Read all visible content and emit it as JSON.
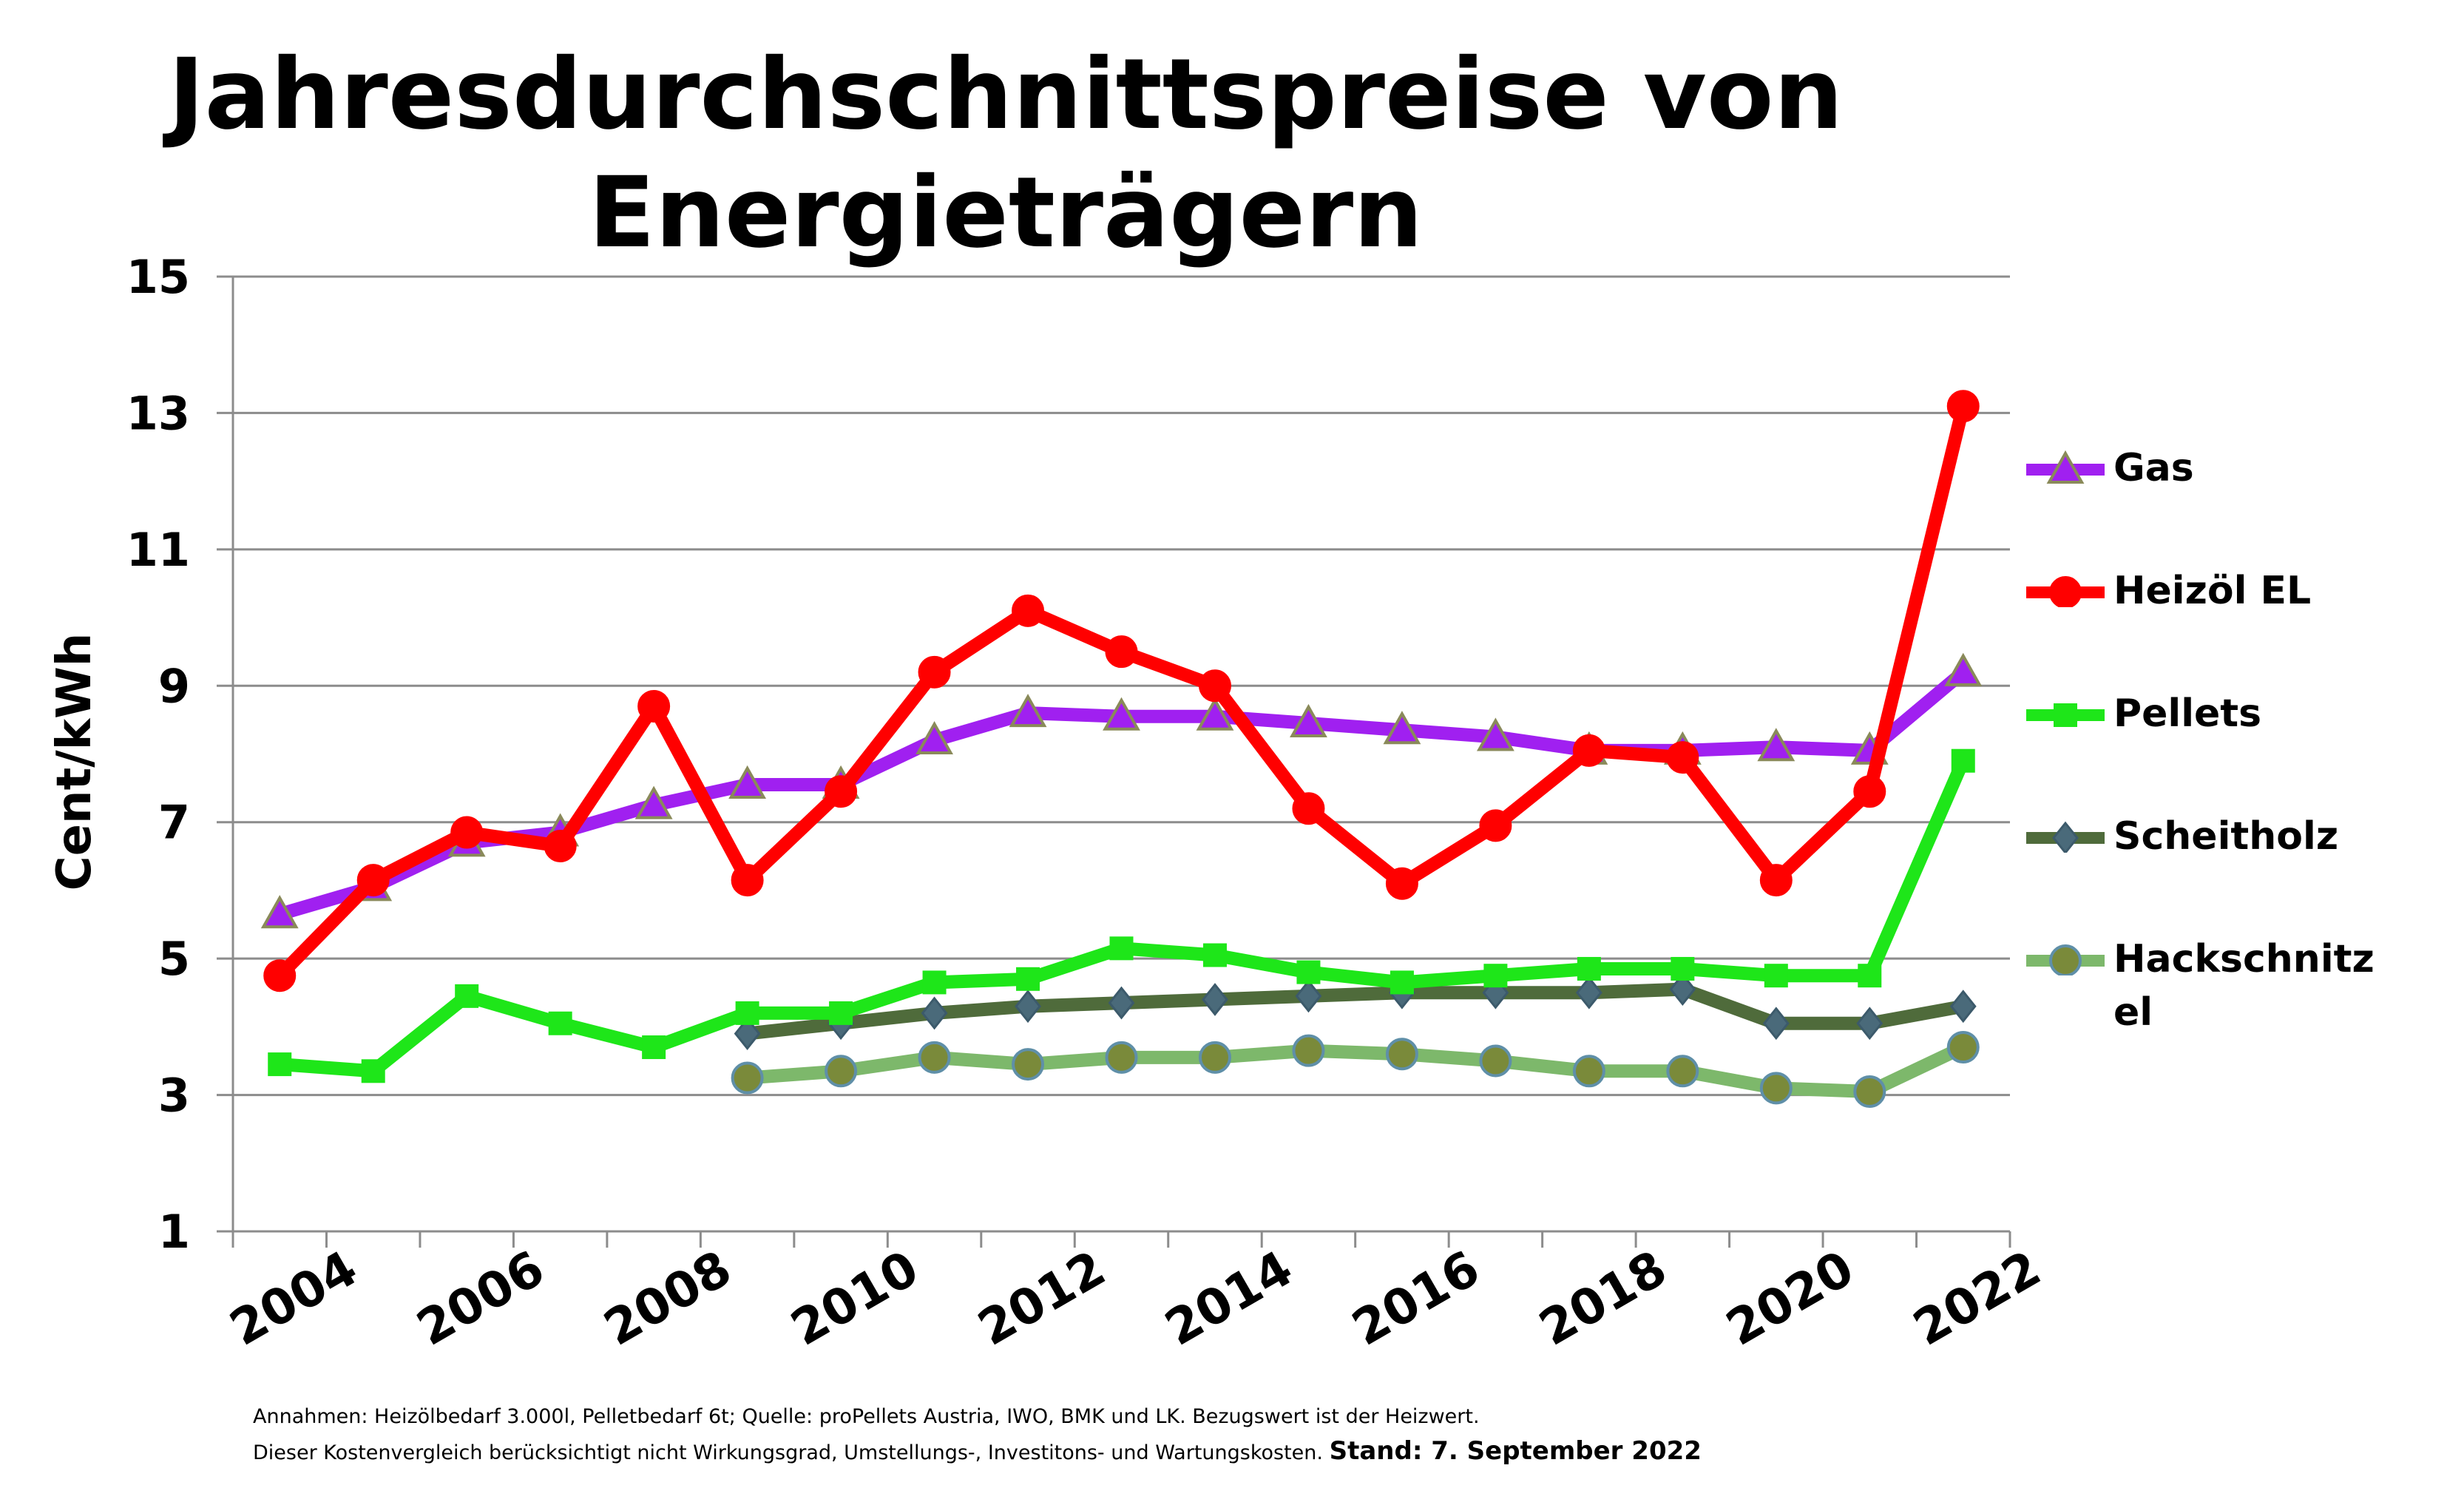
{
  "chart_data": {
    "type": "line",
    "title_lines": [
      "Jahresdurchschnittspreise von",
      "Energieträgern"
    ],
    "ylabel": "Cent/kWh",
    "xlabel": "",
    "ylim": [
      1,
      15
    ],
    "yticks": [
      1,
      3,
      5,
      7,
      9,
      11,
      13,
      15
    ],
    "xtick_labels": [
      "2004",
      "2006",
      "2008",
      "2010",
      "2012",
      "2014",
      "2016",
      "2018",
      "2020",
      "2022"
    ],
    "x": [
      2004,
      2005,
      2006,
      2007,
      2008,
      2009,
      2010,
      2011,
      2012,
      2013,
      2014,
      2015,
      2016,
      2017,
      2018,
      2019,
      2020,
      2021,
      2022
    ],
    "grid": true,
    "legend_position": "right",
    "series": [
      {
        "name": "Gas",
        "color": "#a020f0",
        "marker": "triangle",
        "values": [
          5.65,
          6.05,
          6.7,
          6.85,
          7.25,
          7.55,
          7.55,
          8.2,
          8.6,
          8.55,
          8.55,
          8.45,
          8.35,
          8.25,
          8.05,
          8.05,
          8.1,
          8.05,
          9.2
        ]
      },
      {
        "name": "Heizöl EL",
        "color": "#ff0000",
        "marker": "circle",
        "values": [
          4.75,
          6.15,
          6.85,
          6.65,
          8.7,
          6.15,
          7.45,
          9.2,
          10.1,
          9.5,
          9.0,
          7.2,
          6.1,
          6.95,
          8.05,
          7.95,
          6.15,
          7.45,
          13.1
        ]
      },
      {
        "name": "Pellets",
        "color": "#1ee619",
        "marker": "square",
        "values": [
          3.45,
          3.35,
          4.45,
          4.05,
          3.7,
          4.2,
          4.2,
          4.65,
          4.7,
          5.15,
          5.05,
          4.8,
          4.65,
          4.75,
          4.85,
          4.85,
          4.75,
          4.75,
          7.9
        ]
      },
      {
        "name": "Scheitholz",
        "color": "#4f6b3b",
        "marker": "diamond",
        "values": [
          null,
          null,
          null,
          null,
          null,
          3.9,
          4.05,
          4.2,
          4.3,
          4.35,
          4.4,
          4.45,
          4.5,
          4.5,
          4.5,
          4.55,
          4.05,
          4.05,
          4.3
        ]
      },
      {
        "name": "Hackschnitzel",
        "color": "#7db86b",
        "marker": "circle",
        "values": [
          null,
          null,
          null,
          null,
          null,
          3.25,
          3.35,
          3.55,
          3.45,
          3.55,
          3.55,
          3.65,
          3.6,
          3.5,
          3.35,
          3.35,
          3.1,
          3.05,
          3.7
        ]
      }
    ],
    "legend_labels": [
      "Gas",
      "Heizöl EL",
      "Pellets",
      "Scheitholz",
      "Hackschnitz\nel"
    ]
  },
  "footnotes": {
    "line1": "Annahmen: Heizölbedarf 3.000l, Pelletbedarf 6t; Quelle: proPellets Austria, IWO, BMK und LK. Bezugswert ist der Heizwert.",
    "line2": "Dieser Kostenvergleich berücksichtigt nicht Wirkungsgrad, Umstellungs-, Investitons- und  Wartungskosten.",
    "stand": "Stand: 7. September 2022"
  }
}
